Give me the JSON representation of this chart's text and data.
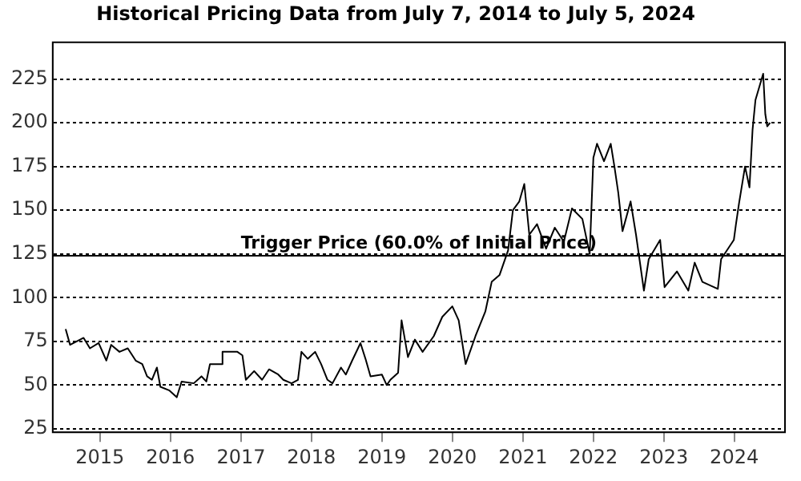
{
  "chart_data": {
    "type": "line",
    "title": "Historical Pricing Data from July 7, 2014 to July 5, 2024",
    "x": [
      "2014-07-07",
      "2014-07-30",
      "2014-10-08",
      "2014-11-10",
      "2014-12-25",
      "2015-02-03",
      "2015-02-28",
      "2015-04-12",
      "2015-05-25",
      "2015-07-05",
      "2015-08-08",
      "2015-09-02",
      "2015-09-27",
      "2015-10-23",
      "2015-11-10",
      "2015-12-25",
      "2016-02-03",
      "2016-02-28",
      "2016-05-01",
      "2016-06-10",
      "2016-07-05",
      "2016-07-24",
      "2016-09-20",
      "2016-09-27",
      "2016-12-13",
      "2017-01-08",
      "2017-01-26",
      "2017-03-10",
      "2017-04-20",
      "2017-05-26",
      "2017-07-13",
      "2017-08-08",
      "2017-09-20",
      "2017-10-23",
      "2017-11-10",
      "2017-12-13",
      "2018-01-20",
      "2018-02-20",
      "2018-03-25",
      "2018-04-20",
      "2018-06-03",
      "2018-06-28",
      "2018-07-31",
      "2018-09-12",
      "2018-10-08",
      "2018-11-03",
      "2019-01-01",
      "2019-01-26",
      "2019-02-14",
      "2019-03-26",
      "2019-04-13",
      "2019-05-16",
      "2019-06-21",
      "2019-07-31",
      "2019-09-27",
      "2019-11-10",
      "2020-01-01",
      "2020-02-03",
      "2020-03-10",
      "2020-04-30",
      "2020-06-20",
      "2020-07-23",
      "2020-09-02",
      "2020-10-16",
      "2020-11-10",
      "2020-12-13",
      "2021-01-08",
      "2021-02-03",
      "2021-03-15",
      "2021-05-01",
      "2021-06-15",
      "2021-08-01",
      "2021-09-12",
      "2021-11-05",
      "2021-12-13",
      "2022-01-01",
      "2022-01-20",
      "2022-02-25",
      "2022-04-01",
      "2022-04-20",
      "2022-05-10",
      "2022-06-01",
      "2022-07-13",
      "2022-08-10",
      "2022-09-20",
      "2022-10-15",
      "2022-12-13",
      "2023-01-05",
      "2023-03-10",
      "2023-05-08",
      "2023-06-10",
      "2023-07-20",
      "2023-10-08",
      "2023-10-25",
      "2023-12-30",
      "2024-01-10",
      "2024-01-26",
      "2024-02-26",
      "2024-03-20",
      "2024-04-05",
      "2024-04-20",
      "2024-05-30",
      "2024-06-10",
      "2024-06-20",
      "2024-07-05"
    ],
    "series": [
      {
        "color": "#000000",
        "values": [
          82,
          73,
          77,
          71,
          74,
          64,
          73,
          69,
          71,
          64,
          62,
          55,
          53,
          60,
          49,
          47,
          43,
          52,
          51,
          55,
          52,
          62,
          62,
          69,
          69,
          67,
          53,
          58,
          53,
          59,
          56,
          53,
          51,
          53,
          69,
          65,
          69,
          62,
          53,
          51,
          60,
          56,
          64,
          74,
          65,
          55,
          56,
          50,
          53,
          57,
          87,
          66,
          76,
          69,
          78,
          89,
          95,
          87,
          62,
          78,
          92,
          109,
          113,
          127,
          150,
          155,
          165,
          136,
          142,
          128,
          140,
          132,
          151,
          145,
          125,
          180,
          188,
          178,
          188,
          175,
          160,
          138,
          155,
          136,
          104,
          122,
          133,
          106,
          115,
          104,
          120,
          109,
          105,
          122,
          133,
          142,
          154,
          175,
          163,
          196,
          213,
          228,
          205,
          198,
          200
        ]
      }
    ],
    "xlim": [
      "2014-05-01",
      "2024-09-20"
    ],
    "xticks": [
      "2015",
      "2016",
      "2017",
      "2018",
      "2019",
      "2020",
      "2021",
      "2022",
      "2023",
      "2024"
    ],
    "ylim": [
      23,
      246
    ],
    "yticks": [
      25,
      50,
      75,
      100,
      125,
      150,
      175,
      200,
      225
    ],
    "grid": "y",
    "legend": false,
    "marker": "none",
    "line_style": "solid",
    "ref_lines": [
      {
        "axis": "y",
        "value": 124,
        "label": "Trigger Price (60.0% of Initial Price)",
        "color": "#000000",
        "line_style": "solid"
      }
    ]
  }
}
